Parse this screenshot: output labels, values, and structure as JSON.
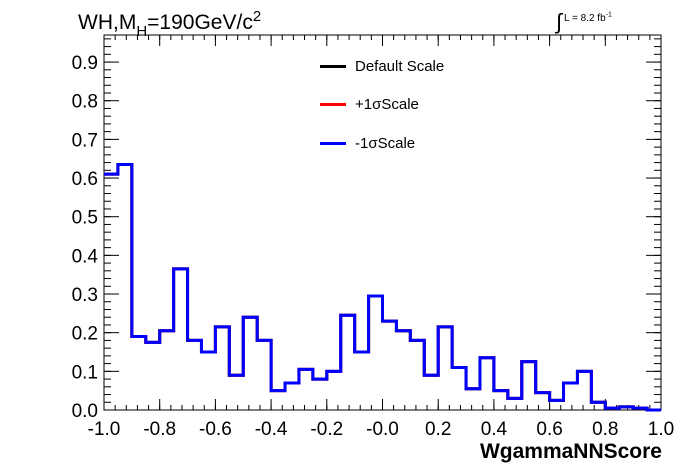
{
  "chart_data": {
    "type": "line",
    "title": {
      "main": "WH,M",
      "sub": "H",
      "value": "=190GeV/c",
      "sup": "2"
    },
    "lumi": {
      "integral": "∫",
      "text": "L = 8.2 fb",
      "sup": "-1"
    },
    "xlabel": "WgammaNNScore",
    "ylabel": "",
    "xlim": [
      -1.0,
      1.0
    ],
    "ylim": [
      0.0,
      0.97
    ],
    "xticks": [
      "-1.0",
      "-0.8",
      "-0.6",
      "-0.4",
      "-0.2",
      "-0.0",
      "0.2",
      "0.4",
      "0.6",
      "0.8",
      "1.0"
    ],
    "yticks": [
      "0.0",
      "0.1",
      "0.2",
      "0.3",
      "0.4",
      "0.5",
      "0.6",
      "0.7",
      "0.8",
      "0.9"
    ],
    "bin_edges": [
      -1.0,
      -0.95,
      -0.9,
      -0.85,
      -0.8,
      -0.75,
      -0.7,
      -0.65,
      -0.6,
      -0.55,
      -0.5,
      -0.45,
      -0.4,
      -0.35,
      -0.3,
      -0.25,
      -0.2,
      -0.15,
      -0.1,
      -0.05,
      0.0,
      0.05,
      0.1,
      0.15,
      0.2,
      0.25,
      0.3,
      0.35,
      0.4,
      0.45,
      0.5,
      0.55,
      0.6,
      0.65,
      0.7,
      0.75,
      0.8,
      0.85,
      0.9,
      0.95,
      1.0
    ],
    "series": [
      {
        "name": "Default Scale",
        "color": "#000000",
        "values": [
          0.61,
          0.635,
          0.19,
          0.175,
          0.205,
          0.365,
          0.18,
          0.15,
          0.215,
          0.09,
          0.24,
          0.18,
          0.05,
          0.07,
          0.105,
          0.08,
          0.1,
          0.245,
          0.15,
          0.295,
          0.23,
          0.205,
          0.18,
          0.09,
          0.215,
          0.11,
          0.055,
          0.135,
          0.05,
          0.03,
          0.125,
          0.045,
          0.025,
          0.07,
          0.1,
          0.02,
          0.005,
          0.008,
          0.005,
          0.0
        ]
      },
      {
        "name": "+1σScale",
        "color": "#ff0000",
        "values": [
          0.61,
          0.635,
          0.19,
          0.175,
          0.205,
          0.365,
          0.18,
          0.15,
          0.215,
          0.09,
          0.24,
          0.18,
          0.05,
          0.07,
          0.105,
          0.08,
          0.1,
          0.245,
          0.15,
          0.295,
          0.23,
          0.205,
          0.18,
          0.09,
          0.215,
          0.11,
          0.055,
          0.135,
          0.05,
          0.03,
          0.125,
          0.045,
          0.025,
          0.07,
          0.1,
          0.02,
          0.005,
          0.008,
          0.005,
          0.0
        ]
      },
      {
        "name": "-1σScale",
        "color": "#0000ff",
        "values": [
          0.61,
          0.635,
          0.19,
          0.175,
          0.205,
          0.365,
          0.18,
          0.15,
          0.215,
          0.09,
          0.24,
          0.18,
          0.05,
          0.07,
          0.105,
          0.08,
          0.1,
          0.245,
          0.15,
          0.295,
          0.23,
          0.205,
          0.18,
          0.09,
          0.215,
          0.11,
          0.055,
          0.135,
          0.05,
          0.03,
          0.125,
          0.045,
          0.025,
          0.07,
          0.1,
          0.02,
          0.005,
          0.008,
          0.005,
          0.0
        ]
      }
    ],
    "legend": [
      {
        "label": "Default Scale",
        "color": "#000000"
      },
      {
        "label": "+1σScale",
        "color": "#ff0000"
      },
      {
        "label": "-1σScale",
        "color": "#0000ff"
      }
    ],
    "legend_position": "top-right",
    "grid": false
  }
}
